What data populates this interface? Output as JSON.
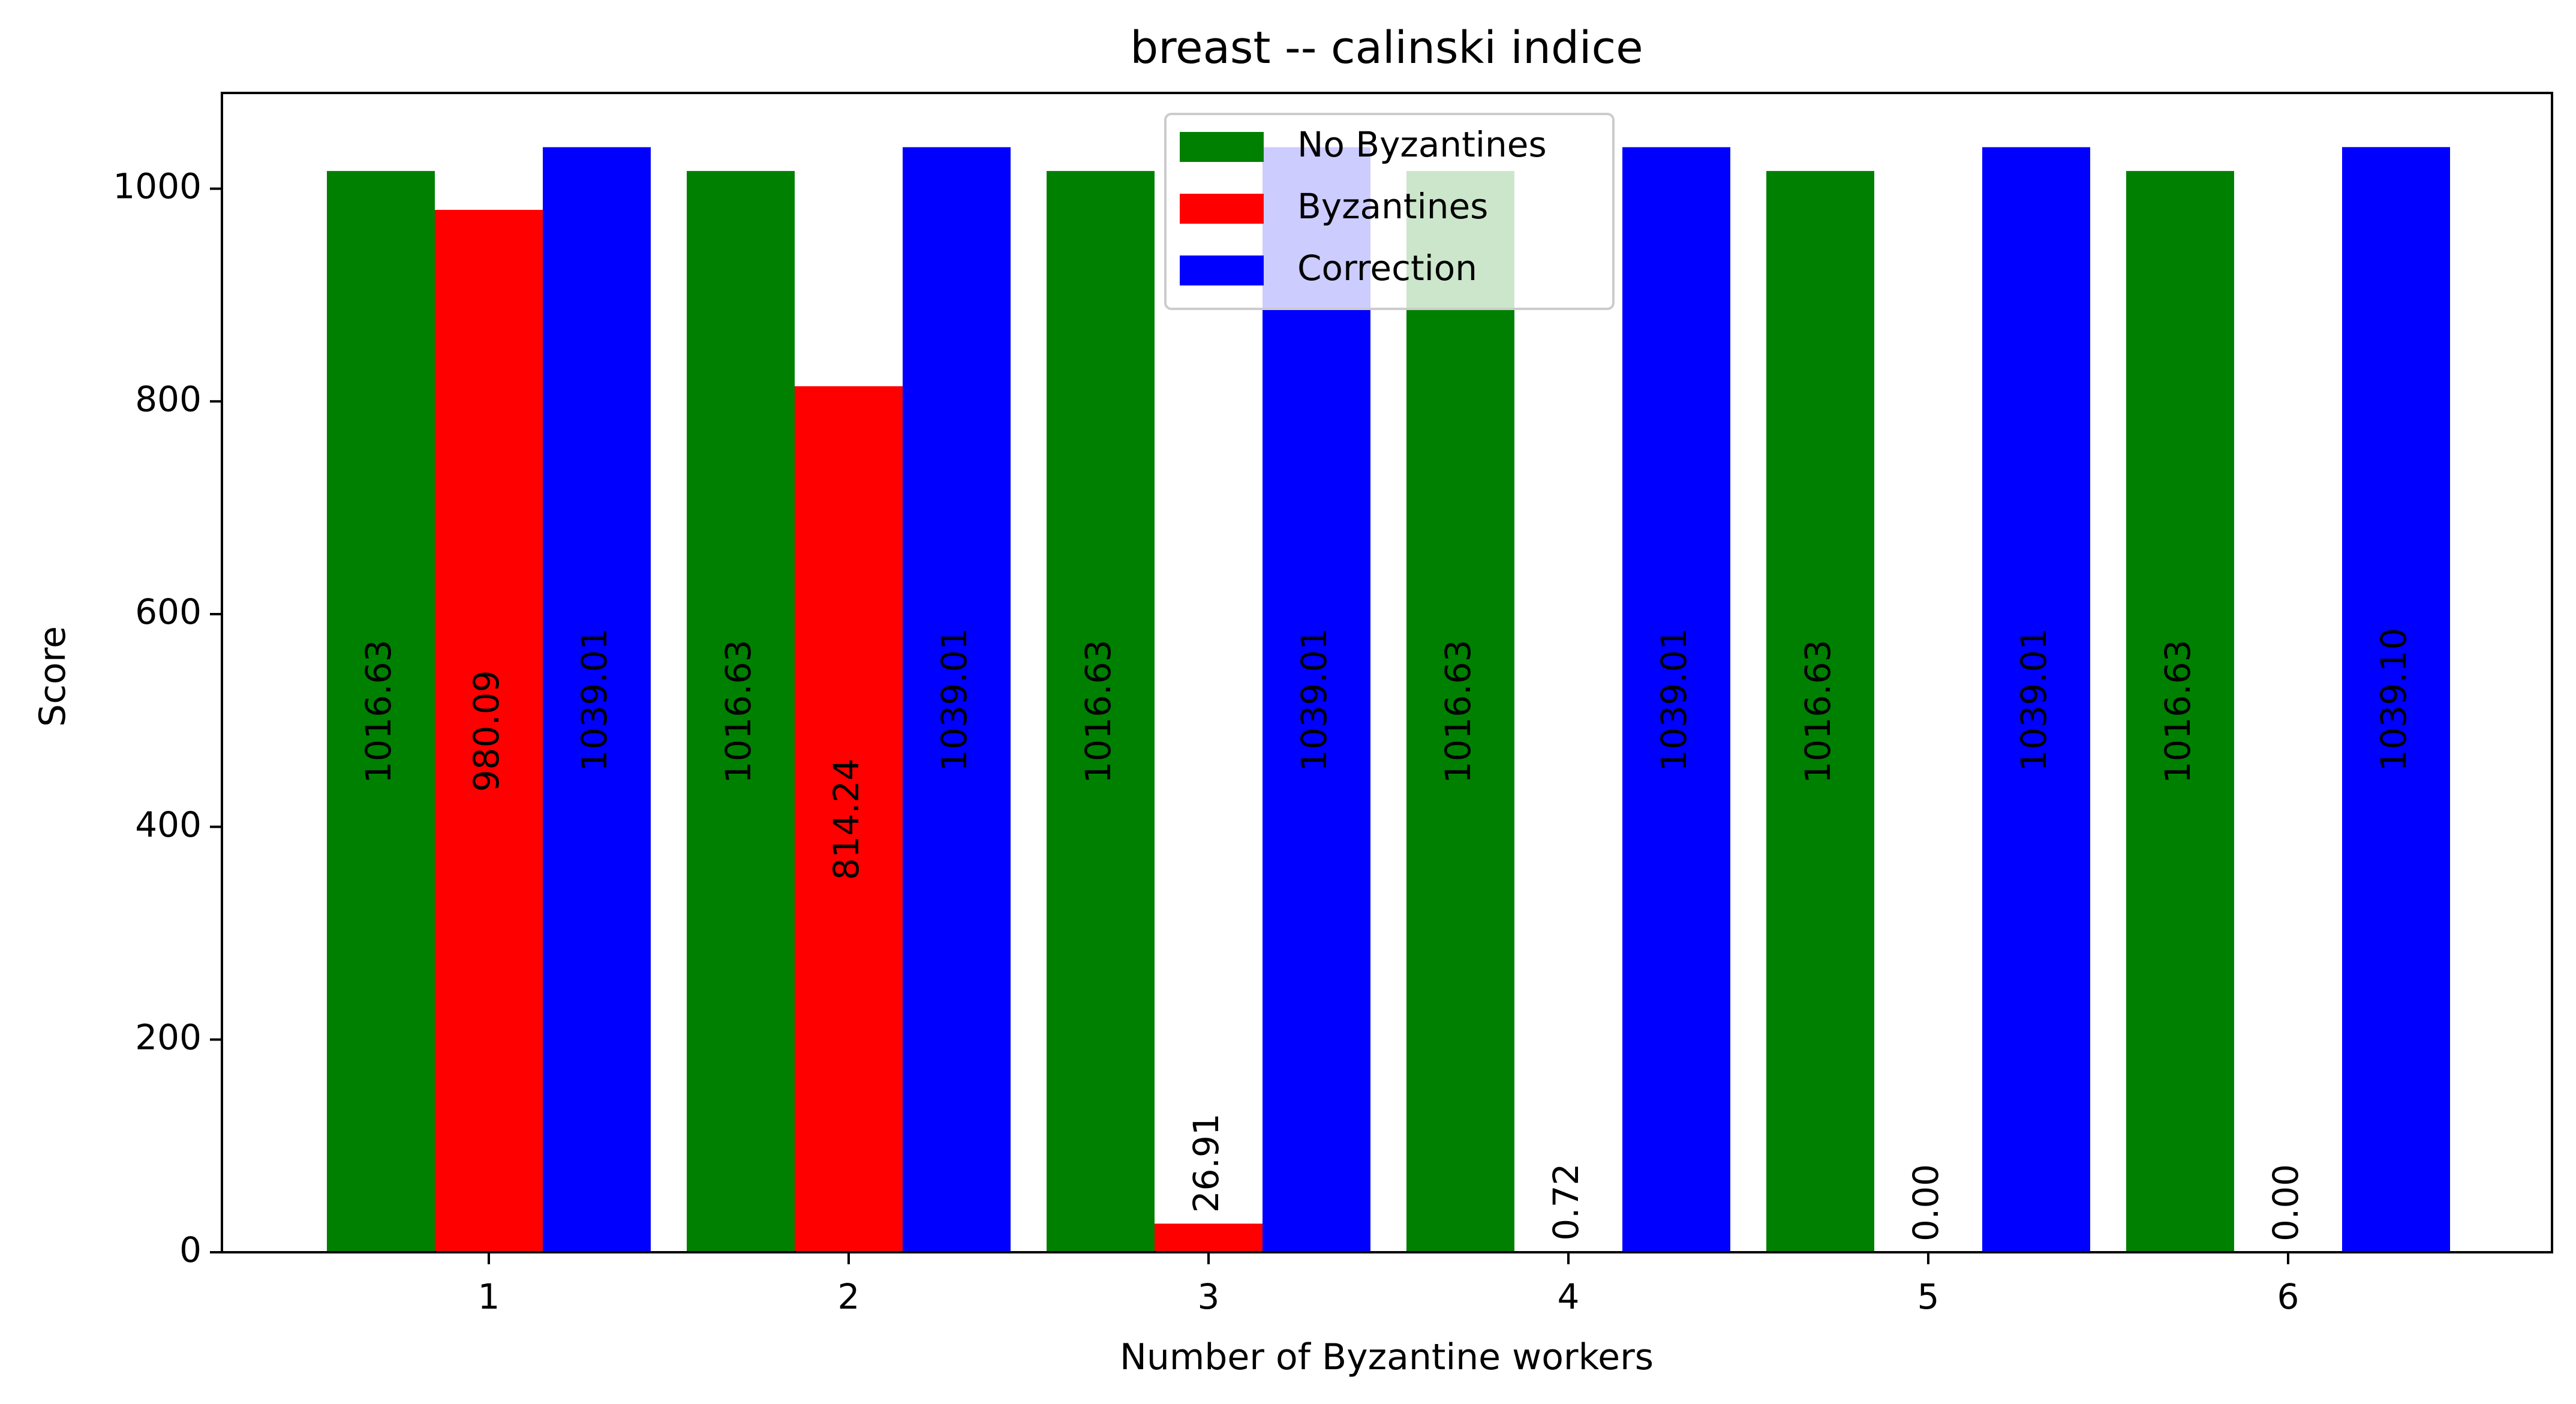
{
  "chart_data": {
    "type": "bar",
    "title": "breast -- calinski indice",
    "xlabel": "Number of Byzantine workers",
    "ylabel": "Score",
    "categories": [
      "1",
      "2",
      "3",
      "4",
      "5",
      "6"
    ],
    "yticks": [
      "0",
      "200",
      "400",
      "600",
      "800",
      "1000"
    ],
    "ylim": [
      0,
      1090
    ],
    "grid": false,
    "legend_position": "top-center",
    "series": [
      {
        "name": "No Byzantines",
        "color": "#008000",
        "values": [
          1016.63,
          1016.63,
          1016.63,
          1016.63,
          1016.63,
          1016.63
        ],
        "labels": [
          "1016.63",
          "1016.63",
          "1016.63",
          "1016.63",
          "1016.63",
          "1016.63"
        ]
      },
      {
        "name": "Byzantines",
        "color": "#ff0000",
        "values": [
          980.09,
          814.24,
          26.91,
          0.72,
          0.0,
          0.0
        ],
        "labels": [
          "980.09",
          "814.24",
          "26.91",
          "0.72",
          "0.00",
          "0.00"
        ]
      },
      {
        "name": "Correction",
        "color": "#0000ff",
        "values": [
          1039.01,
          1039.01,
          1039.01,
          1039.01,
          1039.01,
          1039.1
        ],
        "labels": [
          "1039.01",
          "1039.01",
          "1039.01",
          "1039.01",
          "1039.01",
          "1039.10"
        ]
      }
    ]
  }
}
